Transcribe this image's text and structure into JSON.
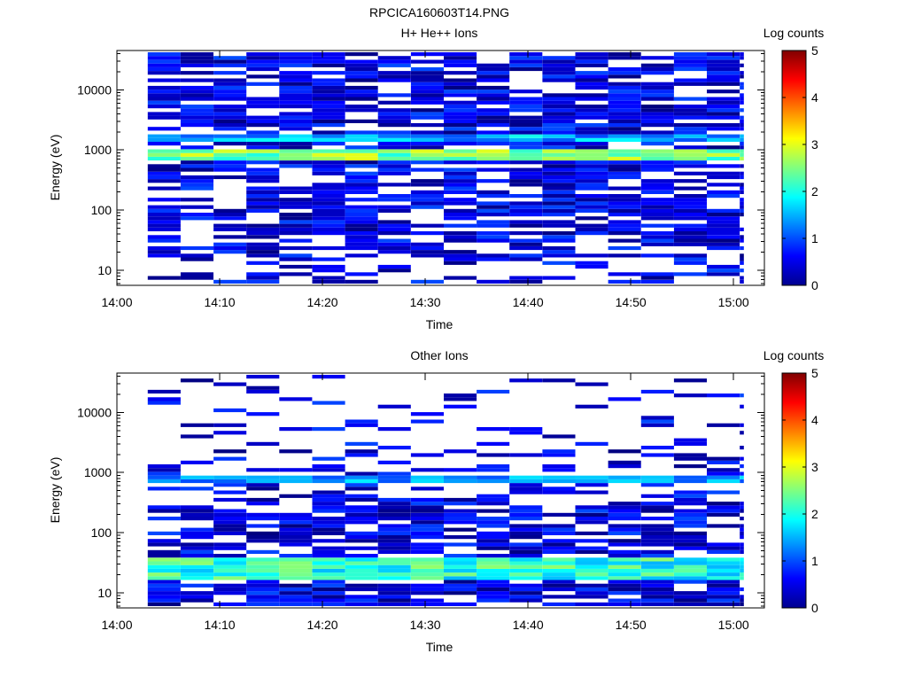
{
  "page_title": "RPCICA160603T14.PNG",
  "chart_data": [
    {
      "type": "heatmap",
      "title": "H+ He++ Ions",
      "xlabel": "Time",
      "ylabel": "Energy (eV)",
      "x_tick_labels": [
        "14:00",
        "14:10",
        "14:20",
        "14:30",
        "14:40",
        "14:50",
        "15:00"
      ],
      "y_tick_labels": [
        "10",
        "100",
        "1000",
        "10000"
      ],
      "y_scale": "log",
      "ylim_eV": [
        5.6,
        45000
      ],
      "xlim": [
        "14:00",
        "15:03"
      ],
      "colorbar": {
        "label": "Log counts",
        "tick_labels": [
          "0",
          "1",
          "2",
          "3",
          "4",
          "5"
        ],
        "range": [
          0,
          5
        ],
        "colormap": "jet"
      },
      "intense_bands": [
        {
          "energy_range_eV": [
            650,
            1000
          ],
          "log_counts": [
            2,
            3
          ],
          "time_range": [
            "14:03",
            "15:01"
          ]
        },
        {
          "energy_range_eV": [
            1400,
            1900
          ],
          "log_counts": [
            1,
            2
          ],
          "time_range": [
            "14:03",
            "15:01"
          ]
        }
      ],
      "background_log_counts": [
        0,
        1
      ],
      "time_bin_minutes": 3.2,
      "data_time_range": [
        "14:03",
        "15:01"
      ],
      "energy_data_range_eV": [
        6,
        42000
      ]
    },
    {
      "type": "heatmap",
      "title": "Other Ions",
      "xlabel": "Time",
      "ylabel": "Energy (eV)",
      "x_tick_labels": [
        "14:00",
        "14:10",
        "14:20",
        "14:30",
        "14:40",
        "14:50",
        "15:00"
      ],
      "y_tick_labels": [
        "10",
        "100",
        "1000",
        "10000"
      ],
      "y_scale": "log",
      "ylim_eV": [
        5.6,
        45000
      ],
      "xlim": [
        "14:00",
        "15:03"
      ],
      "colorbar": {
        "label": "Log counts",
        "tick_labels": [
          "0",
          "1",
          "2",
          "3",
          "4",
          "5"
        ],
        "range": [
          0,
          5
        ],
        "colormap": "jet"
      },
      "intense_bands": [
        {
          "energy_range_eV": [
            16,
            38
          ],
          "log_counts": [
            1.5,
            2.6
          ],
          "time_range": [
            "14:03",
            "15:01"
          ]
        },
        {
          "energy_range_eV": [
            700,
            900
          ],
          "log_counts": [
            1,
            1.8
          ],
          "time_range": [
            "14:03",
            "15:01"
          ]
        }
      ],
      "background_log_counts": [
        0,
        1
      ],
      "time_bin_minutes": 3.2,
      "data_time_range": [
        "14:03",
        "15:01"
      ],
      "energy_data_range_eV": [
        6,
        42000
      ]
    }
  ]
}
